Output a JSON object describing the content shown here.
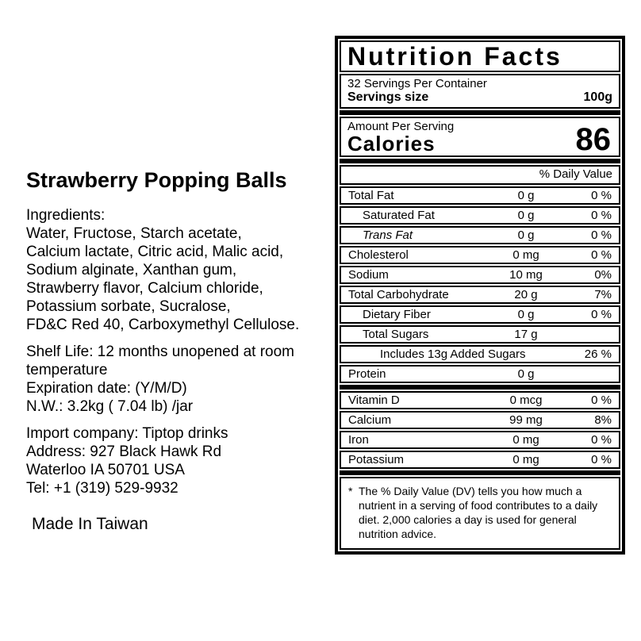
{
  "colors": {
    "ink": "#000000",
    "paper": "#ffffff"
  },
  "product": {
    "title": "Strawberry Popping Balls",
    "ingredients_heading": "Ingredients:",
    "ingredients_lines": [
      "Water, Fructose, Starch acetate,",
      "Calcium lactate, Citric acid, Malic acid,",
      "Sodium alginate, Xanthan gum,",
      "Strawberry flavor, Calcium chloride,",
      "Potassium sorbate, Sucralose,",
      "FD&C Red 40, Carboxymethyl Cellulose."
    ],
    "shelf_lines": [
      "Shelf Life: 12 months unopened at room",
      "temperature",
      "Expiration date: (Y/M/D)",
      "N.W.: 3.2kg ( 7.04 lb) /jar"
    ],
    "import_lines": [
      "Import company: Tiptop drinks",
      "Address: 927 Black Hawk Rd",
      "Waterloo IA 50701 USA",
      "Tel: +1 (319) 529-9932"
    ],
    "made_in": "Made In Taiwan"
  },
  "nutrition": {
    "title": "Nutrition Facts",
    "servings_per_container": "32 Servings Per Container",
    "serving_size_label": "Servings size",
    "serving_size_value": "100g",
    "amount_per_serving": "Amount Per Serving",
    "calories_label": "Calories",
    "calories_value": "86",
    "daily_value_header": "% Daily Value",
    "rows": [
      {
        "name": "Total Fat",
        "amount": "0 g",
        "dv": "0 %"
      },
      {
        "name": "Saturated Fat",
        "amount": "0 g",
        "dv": "0 %"
      },
      {
        "name": "Trans Fat",
        "amount": "0 g",
        "dv": "0 %"
      },
      {
        "name": "Cholesterol",
        "amount": "0 mg",
        "dv": "0 %"
      },
      {
        "name": "Sodium",
        "amount": "10 mg",
        "dv": "0%"
      },
      {
        "name": "Total Carbohydrate",
        "amount": "20 g",
        "dv": "7%"
      },
      {
        "name": "Dietary Fiber",
        "amount": "0 g",
        "dv": "0 %"
      },
      {
        "name": "Total Sugars",
        "amount": "17 g",
        "dv": ""
      },
      {
        "name": "Includes 13g Added Sugars",
        "amount": "",
        "dv": "26 %"
      },
      {
        "name": "Protein",
        "amount": "0 g",
        "dv": ""
      },
      {
        "name": "Vitamin D",
        "amount": "0 mcg",
        "dv": "0 %"
      },
      {
        "name": "Calcium",
        "amount": "99 mg",
        "dv": "8%"
      },
      {
        "name": "Iron",
        "amount": "0 mg",
        "dv": "0 %"
      },
      {
        "name": "Potassium",
        "amount": "0 mg",
        "dv": "0 %"
      }
    ],
    "footnote_marker": "*",
    "footnote_text": "The % Daily Value (DV) tells you how much a nutrient in a serving of food contributes to a daily diet. 2,000 calories a day is used for general nutrition advice."
  }
}
